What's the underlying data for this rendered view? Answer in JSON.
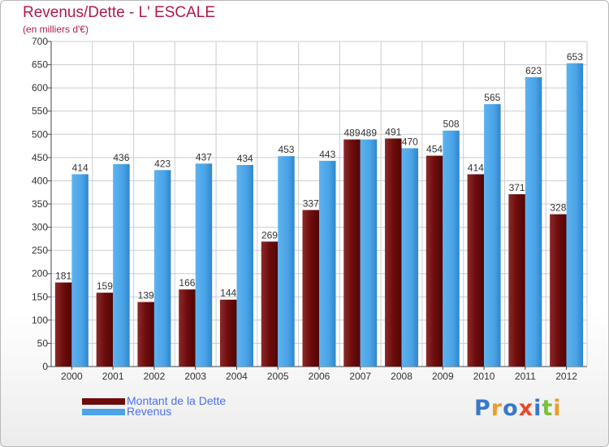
{
  "title": "Revenus/Dette - L' ESCALE",
  "subtitle": "(en milliers d'€)",
  "colors": {
    "title": "#b0174f",
    "dette": "#6e0c0c",
    "revenus": "#4aa3e6",
    "legend_text": "#4a6ff0",
    "grid": "#cccccc"
  },
  "chart_data": {
    "type": "bar",
    "categories": [
      "2000",
      "2001",
      "2002",
      "2003",
      "2004",
      "2005",
      "2006",
      "2007",
      "2008",
      "2009",
      "2010",
      "2011",
      "2012"
    ],
    "series": [
      {
        "name": "Montant de la Dette",
        "values": [
          181,
          159,
          139,
          166,
          144,
          269,
          337,
          489,
          491,
          454,
          414,
          371,
          328
        ]
      },
      {
        "name": "Revenus",
        "values": [
          414,
          436,
          423,
          437,
          434,
          453,
          443,
          489,
          470,
          508,
          565,
          623,
          653
        ]
      }
    ],
    "yticks": [
      0,
      50,
      100,
      150,
      200,
      250,
      300,
      350,
      400,
      450,
      500,
      550,
      600,
      650,
      700
    ],
    "ylim": [
      0,
      700
    ],
    "grid": true,
    "legend_position": "bottom-left"
  },
  "legend": {
    "items": [
      {
        "label": "Montant de la Dette"
      },
      {
        "label": "Revenus"
      }
    ]
  },
  "logo": {
    "text": "Proxiti",
    "letter_colors": [
      "#3a78c8",
      "#e8a02a",
      "#3a78c8",
      "#e84a2a",
      "#3a78c8",
      "#7bbf3a",
      "#e8a02a"
    ]
  }
}
